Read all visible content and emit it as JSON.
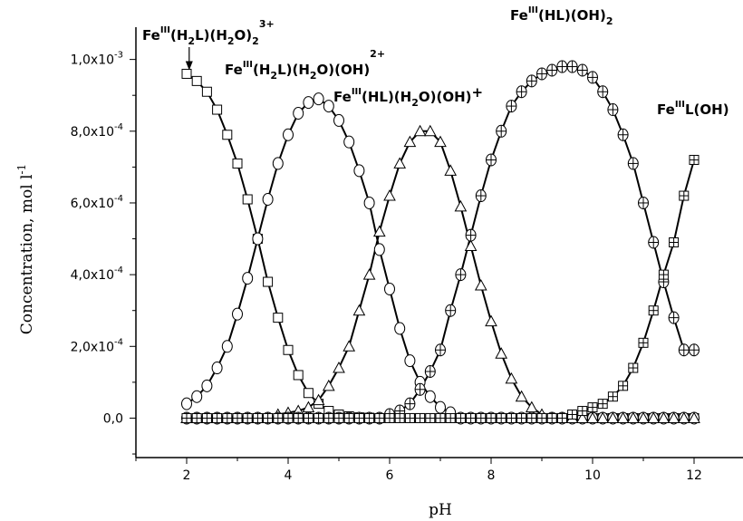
{
  "chart_data": {
    "type": "line",
    "xlabel": "pH",
    "ylabel": "Concentration, mol l",
    "ylabel_sup": "-1",
    "xlim": [
      1.0,
      13.0
    ],
    "ylim": [
      -0.00011,
      0.00109
    ],
    "x_ticks": [
      2,
      4,
      6,
      8,
      10,
      12
    ],
    "x_tick_labels": [
      "2",
      "4",
      "6",
      "8",
      "10",
      "12"
    ],
    "y_ticks": [
      0,
      0.0002,
      0.0004,
      0.0006,
      0.0008,
      0.001
    ],
    "y_tick_labels": [
      "0,0",
      "2,0x10-4",
      "4,0x10-4",
      "6,0x10-4",
      "8,0x10-4",
      "1,0x10-3"
    ],
    "grid": false,
    "legend": "none",
    "series": [
      {
        "name": "FeIII(H2L)(H2O)2 3+",
        "label_parts": [
          "Fe",
          "III",
          "(H",
          "2",
          "L)(H",
          "2",
          "O)",
          "2",
          "3+"
        ],
        "marker": "square",
        "x": [
          2.0,
          2.2,
          2.4,
          2.6,
          2.8,
          3.0,
          3.2,
          3.4,
          3.6,
          3.8,
          4.0,
          4.2,
          4.4,
          4.6,
          4.8,
          5.0,
          5.2,
          5.4,
          5.6,
          5.8,
          6.0
        ],
        "y": [
          0.00096,
          0.00094,
          0.00091,
          0.00086,
          0.00079,
          0.00071,
          0.00061,
          0.0005,
          0.00038,
          0.00028,
          0.00019,
          0.00012,
          7e-05,
          4e-05,
          2e-05,
          1e-05,
          5e-06,
          2e-06,
          1e-06,
          0.0,
          0.0
        ]
      },
      {
        "name": "FeIII(H2L)(H2O)(OH) 2+",
        "label_parts": [
          "Fe",
          "III",
          "(H",
          "2",
          "L)(H",
          "2",
          "O)(OH)",
          "",
          "2+"
        ],
        "marker": "circle",
        "x": [
          2.0,
          2.2,
          2.4,
          2.6,
          2.8,
          3.0,
          3.2,
          3.4,
          3.6,
          3.8,
          4.0,
          4.2,
          4.4,
          4.6,
          4.8,
          5.0,
          5.2,
          5.4,
          5.6,
          5.8,
          6.0,
          6.2,
          6.4,
          6.6,
          6.8,
          7.0,
          7.2
        ],
        "y": [
          4e-05,
          6e-05,
          9e-05,
          0.00014,
          0.0002,
          0.00029,
          0.00039,
          0.0005,
          0.00061,
          0.00071,
          0.00079,
          0.00085,
          0.00088,
          0.00089,
          0.00087,
          0.00083,
          0.00077,
          0.00069,
          0.0006,
          0.00047,
          0.00036,
          0.00025,
          0.00016,
          0.0001,
          6e-05,
          3e-05,
          1.5e-05
        ]
      },
      {
        "name": "FeIII(HL)(H2O)(OH) +",
        "label_parts": [
          "Fe",
          "III",
          "(HL)(H",
          "2",
          "O)(OH)",
          "",
          "+"
        ],
        "marker": "triangle",
        "x": [
          3.8,
          4.0,
          4.2,
          4.4,
          4.6,
          4.8,
          5.0,
          5.2,
          5.4,
          5.6,
          5.8,
          6.0,
          6.2,
          6.4,
          6.6,
          6.8,
          7.0,
          7.2,
          7.4,
          7.6,
          7.8,
          8.0,
          8.2,
          8.4,
          8.6,
          8.8,
          9.0
        ],
        "y": [
          1e-05,
          1.5e-05,
          2e-05,
          3e-05,
          5e-05,
          9e-05,
          0.00014,
          0.0002,
          0.0003,
          0.0004,
          0.00052,
          0.00062,
          0.00071,
          0.00077,
          0.0008,
          0.0008,
          0.00077,
          0.00069,
          0.00059,
          0.00048,
          0.00037,
          0.00027,
          0.00018,
          0.00011,
          6e-05,
          3e-05,
          1e-05
        ]
      },
      {
        "name": "FeIII(HL)(OH)2",
        "label_parts": [
          "Fe",
          "III",
          "(HL)(OH)",
          "2",
          ""
        ],
        "marker": "circle-plus",
        "x": [
          6.0,
          6.2,
          6.4,
          6.6,
          6.8,
          7.0,
          7.2,
          7.4,
          7.6,
          7.8,
          8.0,
          8.2,
          8.4,
          8.6,
          8.8,
          9.0,
          9.2,
          9.4,
          9.6,
          9.8,
          10.0,
          10.2,
          10.4,
          10.6,
          10.8,
          11.0,
          11.2,
          11.4,
          11.6,
          11.8,
          12.0
        ],
        "y": [
          1e-05,
          2e-05,
          4e-05,
          8e-05,
          0.00013,
          0.00019,
          0.0003,
          0.0004,
          0.00051,
          0.00062,
          0.00072,
          0.0008,
          0.00087,
          0.00091,
          0.00094,
          0.00096,
          0.00097,
          0.00098,
          0.00098,
          0.00097,
          0.00095,
          0.00091,
          0.00086,
          0.00079,
          0.00071,
          0.0006,
          0.00049,
          0.00038,
          0.00028,
          0.00019,
          0.00019
        ]
      },
      {
        "name": "FeIIIL(OH)",
        "label_parts": [
          "Fe",
          "III",
          "L(OH)",
          "",
          ""
        ],
        "marker": "square-plus",
        "x": [
          9.6,
          9.8,
          10.0,
          10.2,
          10.4,
          10.6,
          10.8,
          11.0,
          11.2,
          11.4,
          11.6,
          11.8,
          12.0
        ],
        "y": [
          1e-05,
          2e-05,
          3e-05,
          4e-05,
          6e-05,
          9e-05,
          0.00014,
          0.00021,
          0.0003,
          0.0004,
          0.00049,
          0.00062,
          0.00072
        ]
      }
    ],
    "baseline_series_note": "",
    "annotation": {
      "arrow_from_label": "FeIII(H2L)(H2O)2 3+",
      "arrow_to": [
        2.05,
        0.00096
      ]
    }
  }
}
